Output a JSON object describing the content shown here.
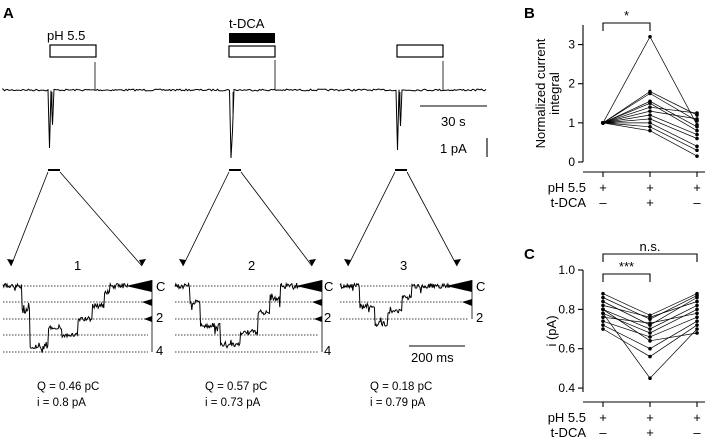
{
  "panel_a": {
    "letter": "A",
    "label_ph": "pH 5.5",
    "label_tdca": "t-DCA",
    "scale_time": "30 s",
    "scale_current": "1 pA",
    "scale_time_zoom": "200 ms",
    "expansions": [
      {
        "number": "1",
        "q": "Q = 0.46 pC",
        "i": "i = 0.8 pA",
        "levels": [
          "C",
          "2",
          "4"
        ]
      },
      {
        "number": "2",
        "q": "Q = 0.57 pC",
        "i": "i = 0.73 pA",
        "levels": [
          "C",
          "2",
          "4"
        ]
      },
      {
        "number": "3",
        "q": "Q = 0.18 pC",
        "i": "i = 0.79 pA",
        "levels": [
          "C",
          "2"
        ]
      }
    ]
  },
  "chart_data": [
    {
      "type": "line",
      "panel": "B",
      "ylabel": "Normalized current integral",
      "ylim": [
        0,
        3.5
      ],
      "yticks": [
        0,
        1,
        2,
        3
      ],
      "conditions": [
        "1",
        "2",
        "3"
      ],
      "condition_rows": [
        {
          "label": "pH 5.5",
          "marks": [
            "+",
            "+",
            "+"
          ]
        },
        {
          "label": "t-DCA",
          "marks": [
            "–",
            "+",
            "–"
          ]
        }
      ],
      "significance": [
        {
          "from": 0,
          "to": 1,
          "label": "*"
        }
      ],
      "series": [
        {
          "values": [
            1,
            3.2,
            0.95
          ]
        },
        {
          "values": [
            1,
            1.8,
            1.2
          ]
        },
        {
          "values": [
            1,
            1.75,
            1.05
          ]
        },
        {
          "values": [
            1,
            1.55,
            0.9
          ]
        },
        {
          "values": [
            1,
            1.5,
            0.8
          ]
        },
        {
          "values": [
            1,
            1.4,
            1.25
          ]
        },
        {
          "values": [
            1,
            1.3,
            1.1
          ]
        },
        {
          "values": [
            1,
            1.2,
            0.7
          ]
        },
        {
          "values": [
            1,
            1.1,
            0.6
          ]
        },
        {
          "values": [
            1,
            1.0,
            0.4
          ]
        },
        {
          "values": [
            1,
            0.9,
            0.3
          ]
        },
        {
          "values": [
            1,
            0.8,
            0.15
          ]
        }
      ]
    },
    {
      "type": "line",
      "panel": "C",
      "ylabel": "i (pA)",
      "ylim": [
        0.38,
        1.0
      ],
      "yticks": [
        0.4,
        0.6,
        0.8,
        1.0
      ],
      "conditions": [
        "1",
        "2",
        "3"
      ],
      "condition_rows": [
        {
          "label": "pH 5.5",
          "marks": [
            "+",
            "+",
            "+"
          ]
        },
        {
          "label": "t-DCA",
          "marks": [
            "–",
            "+",
            "–"
          ]
        }
      ],
      "significance": [
        {
          "from": 0,
          "to": 1,
          "label": "***"
        },
        {
          "from": 0,
          "to": 2,
          "label": "n.s."
        }
      ],
      "series": [
        {
          "values": [
            0.88,
            0.77,
            0.88
          ]
        },
        {
          "values": [
            0.86,
            0.75,
            0.87
          ]
        },
        {
          "values": [
            0.84,
            0.72,
            0.86
          ]
        },
        {
          "values": [
            0.82,
            0.76,
            0.84
          ]
        },
        {
          "values": [
            0.8,
            0.7,
            0.82
          ]
        },
        {
          "values": [
            0.78,
            0.68,
            0.8
          ]
        },
        {
          "values": [
            0.76,
            0.73,
            0.78
          ]
        },
        {
          "values": [
            0.74,
            0.66,
            0.76
          ]
        },
        {
          "values": [
            0.72,
            0.6,
            0.74
          ]
        },
        {
          "values": [
            0.7,
            0.56,
            0.72
          ]
        },
        {
          "values": [
            0.8,
            0.64,
            0.68
          ]
        },
        {
          "values": [
            0.78,
            0.45,
            0.7
          ]
        }
      ]
    }
  ]
}
